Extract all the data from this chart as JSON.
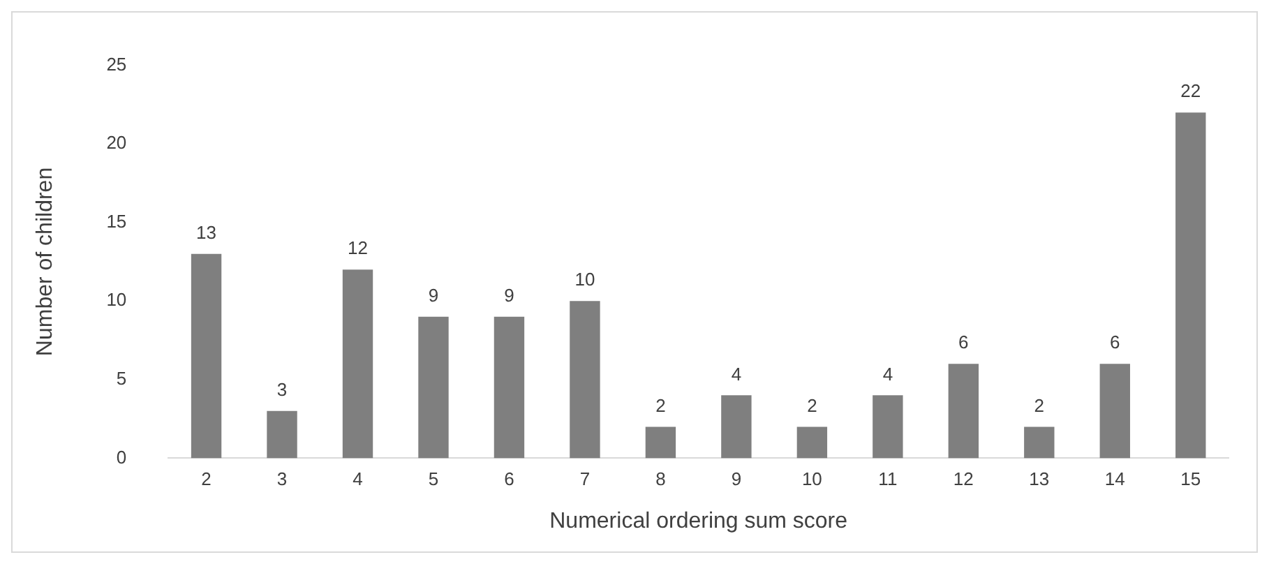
{
  "chart_data": {
    "type": "bar",
    "xlabel": "Numerical ordering sum score",
    "ylabel": "Number of children",
    "categories": [
      "2",
      "3",
      "4",
      "5",
      "6",
      "7",
      "8",
      "9",
      "10",
      "11",
      "12",
      "13",
      "14",
      "15"
    ],
    "values": [
      13,
      3,
      12,
      9,
      9,
      10,
      2,
      4,
      2,
      4,
      6,
      2,
      6,
      22
    ],
    "color": "#7f7f7f",
    "ylim": [
      0,
      25
    ],
    "yticks": [
      0,
      5,
      10,
      15,
      20,
      25
    ],
    "grid": false,
    "legend": false,
    "data_labels": true
  }
}
